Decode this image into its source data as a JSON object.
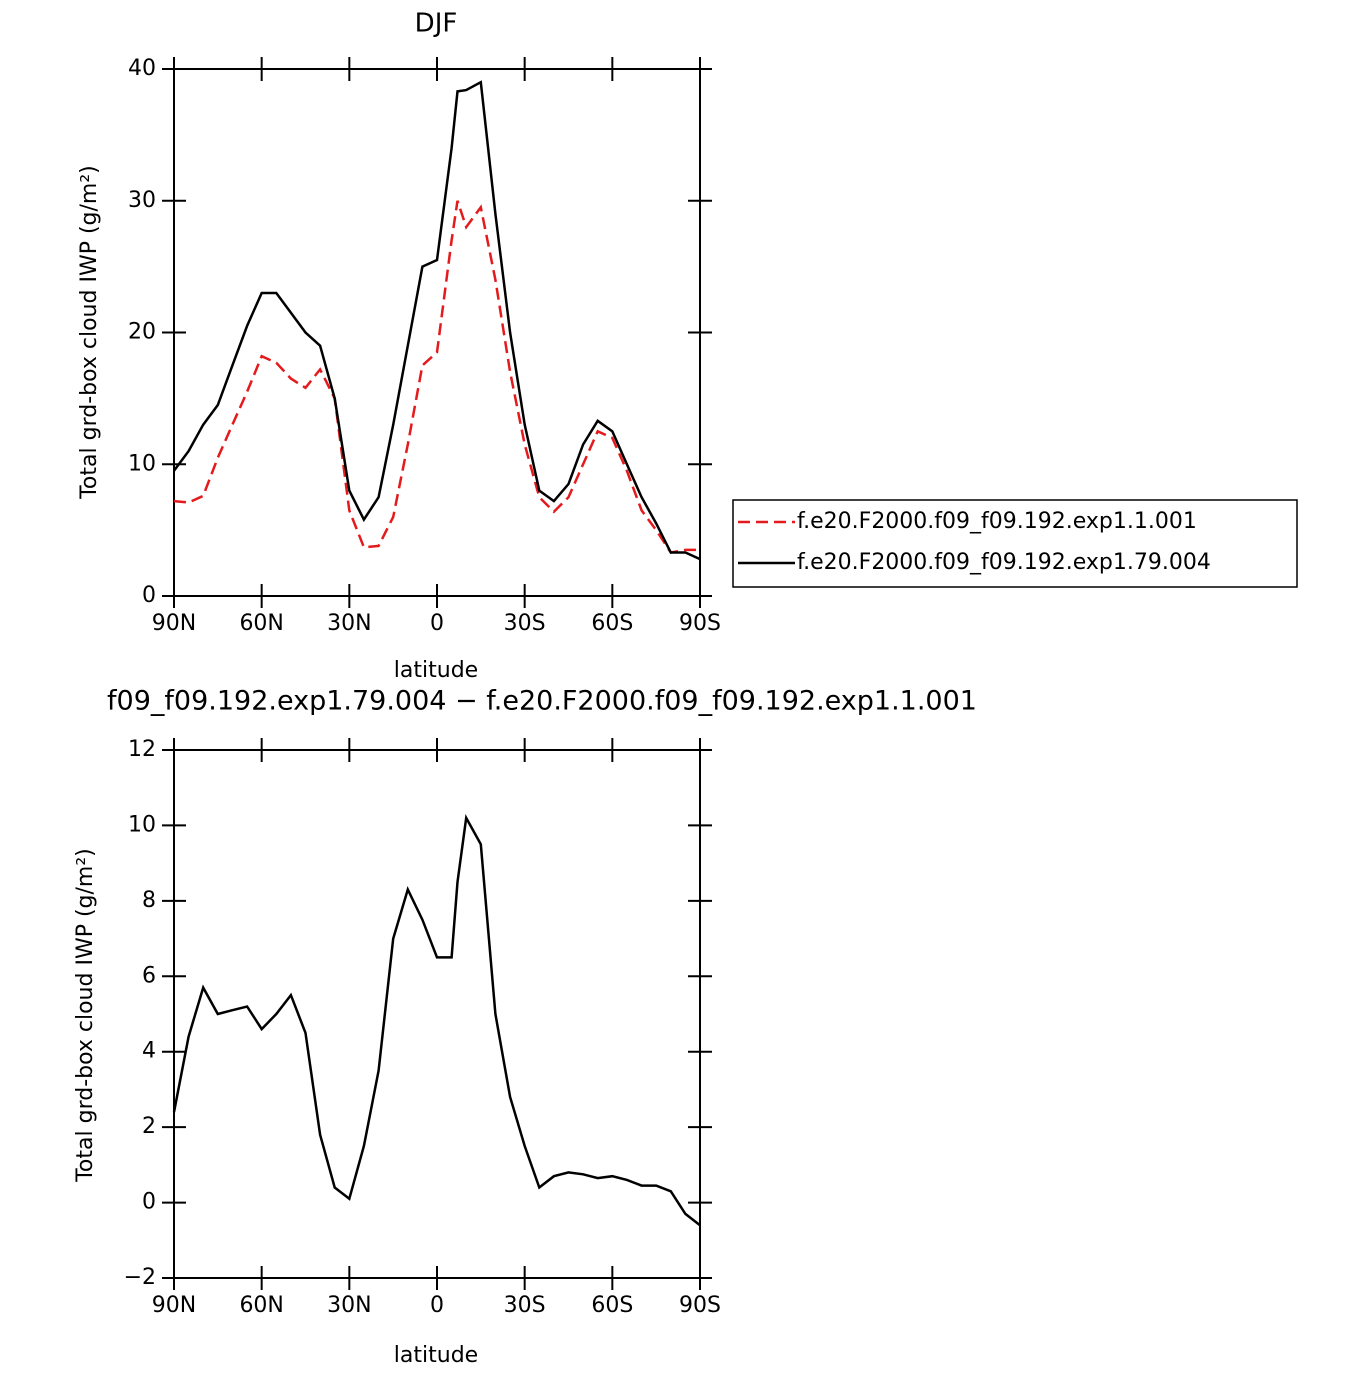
{
  "chart_data": [
    {
      "type": "line",
      "title": "DJF",
      "xlabel": "latitude",
      "ylabel": "Total grd-box cloud IWP (g/m²)",
      "x": [
        90,
        85,
        80,
        75,
        70,
        65,
        60,
        55,
        50,
        45,
        40,
        35,
        30,
        25,
        20,
        15,
        10,
        5,
        0,
        -5,
        -7,
        -10,
        -15,
        -20,
        -25,
        -30,
        -35,
        -40,
        -45,
        -50,
        -55,
        -60,
        -65,
        -70,
        -75,
        -80,
        -85,
        -90
      ],
      "xlim": [
        90,
        -90
      ],
      "xticks": [
        {
          "value": 90,
          "label": "90N"
        },
        {
          "value": 60,
          "label": "60N"
        },
        {
          "value": 30,
          "label": "30N"
        },
        0,
        {
          "value": -30,
          "label": "30S"
        },
        {
          "value": -60,
          "label": "60S"
        },
        {
          "value": -90,
          "label": "90S"
        }
      ],
      "ylim": [
        0,
        40
      ],
      "yticks": [
        0,
        10,
        20,
        30,
        40
      ],
      "legend": "right",
      "series": [
        {
          "name": "f.e20.F2000.f09_f09.192.exp1.1.001",
          "color": "#e41a1c",
          "line_style": "dashed",
          "values": [
            7.2,
            7.1,
            7.6,
            10.5,
            13,
            15.5,
            18.2,
            17.7,
            16.5,
            15.8,
            17.2,
            15,
            6.5,
            3.7,
            3.8,
            6,
            11.5,
            17.5,
            18.5,
            27,
            30,
            28,
            29.5,
            24,
            17,
            11.5,
            7.5,
            6.4,
            7.5,
            10,
            12.5,
            12,
            9.5,
            6.5,
            5,
            3.3,
            3.5,
            3.5
          ]
        },
        {
          "name": "f.e20.F2000.f09_f09.192.exp1.79.004",
          "color": "#000000",
          "line_style": "solid",
          "values": [
            9.5,
            11,
            13,
            14.5,
            17.5,
            20.5,
            23,
            23,
            21.5,
            20,
            19,
            15,
            8,
            5.8,
            7.5,
            13,
            19,
            25,
            25.5,
            34,
            38.3,
            38.4,
            39,
            29,
            20,
            13,
            8,
            7.2,
            8.5,
            11.5,
            13.3,
            12.5,
            10,
            7.5,
            5.5,
            3.3,
            3.3,
            2.8
          ]
        }
      ]
    },
    {
      "type": "line",
      "title": "f09_f09.192.exp1.79.004 − f.e20.F2000.f09_f09.192.exp1.1.001",
      "xlabel": "latitude",
      "ylabel": "Total grd-box cloud IWP (g/m²)",
      "x": [
        90,
        85,
        80,
        75,
        70,
        65,
        60,
        55,
        50,
        45,
        40,
        35,
        30,
        25,
        20,
        15,
        10,
        5,
        0,
        -5,
        -7,
        -10,
        -15,
        -20,
        -25,
        -30,
        -35,
        -40,
        -45,
        -50,
        -55,
        -60,
        -65,
        -70,
        -75,
        -80,
        -85,
        -90
      ],
      "xlim": [
        90,
        -90
      ],
      "xticks": [
        {
          "value": 90,
          "label": "90N"
        },
        {
          "value": 60,
          "label": "60N"
        },
        {
          "value": 30,
          "label": "30N"
        },
        0,
        {
          "value": -30,
          "label": "30S"
        },
        {
          "value": -60,
          "label": "60S"
        },
        {
          "value": -90,
          "label": "90S"
        }
      ],
      "ylim": [
        -2,
        12
      ],
      "yticks": [
        {
          "value": -2,
          "label": "−2"
        },
        0,
        2,
        4,
        6,
        8,
        10,
        12
      ],
      "series": [
        {
          "color": "#000000",
          "line_style": "solid",
          "values": [
            2.4,
            4.4,
            5.7,
            5.0,
            5.1,
            5.2,
            4.6,
            5.0,
            5.5,
            4.5,
            1.8,
            0.4,
            0.1,
            1.5,
            3.5,
            7,
            8.3,
            7.5,
            6.5,
            6.5,
            8.5,
            10.2,
            9.5,
            5,
            2.8,
            1.5,
            0.4,
            0.7,
            0.8,
            0.75,
            0.65,
            0.7,
            0.6,
            0.45,
            0.45,
            0.3,
            -0.3,
            -0.6
          ]
        }
      ]
    }
  ]
}
